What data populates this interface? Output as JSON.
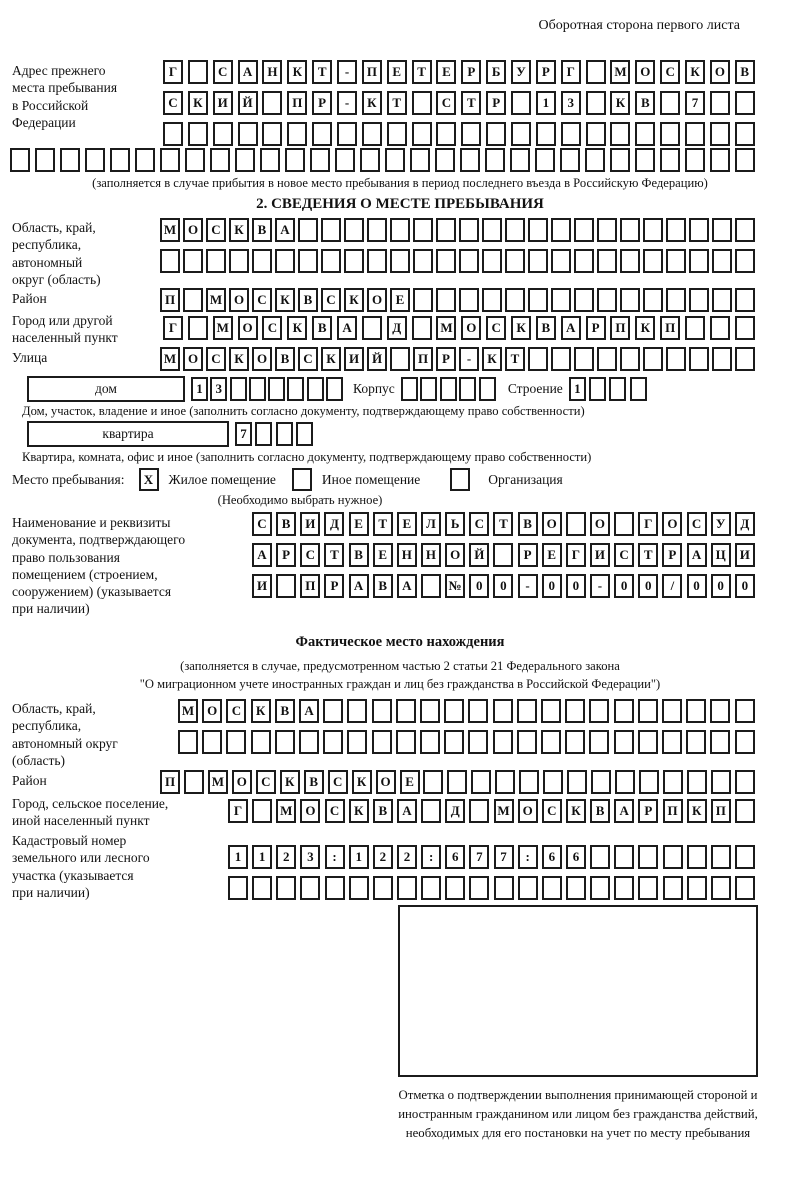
{
  "page": {
    "header_note": "Оборотная сторона первого листа"
  },
  "prev_address": {
    "label": "Адрес прежнего\nместа пребывания\nв Российской\nФедерации",
    "row1": {
      "count": 24,
      "cells": "Г САНКТ-ПЕТЕРБУРГ МОСКОВ"
    },
    "row2": {
      "count": 24,
      "cells": "СКИЙ ПР-КТ СТР 13 КВ 7"
    },
    "row3": {
      "count": 24,
      "cells": ""
    },
    "row4": {
      "count": 30,
      "cells": ""
    },
    "note": "(заполняется в случае прибытия в новое место пребывания в период последнего въезда в Российскую Федерацию)"
  },
  "section2": {
    "title": "2. СВЕДЕНИЯ О МЕСТЕ ПРЕБЫВАНИЯ",
    "oblast": {
      "label": "Область, край,\nреспублика,\nавтономный\nокруг (область)",
      "row1": {
        "count": 26,
        "cells": "МОСКВА"
      },
      "row2": {
        "count": 26,
        "cells": ""
      }
    },
    "rayon": {
      "label": "Район",
      "row": {
        "count": 26,
        "cells": "П МОСКВСКОЕ"
      }
    },
    "gorod": {
      "label": "Город или другой\nнаселенный пункт",
      "row": {
        "count": 24,
        "cells": "Г МОСКВА Д МОСКВАРПКП"
      }
    },
    "ulitsa": {
      "label": "Улица",
      "row": {
        "count": 26,
        "cells": "МОСКОВСКИЙ ПР-КТ"
      }
    },
    "dom": {
      "label": "дом",
      "digits": {
        "count": 8,
        "cells": "13"
      },
      "korpus_label": "Корпус",
      "korpus": {
        "count": 5,
        "cells": ""
      },
      "stroenie_label": "Строение",
      "stroenie": {
        "count": 4,
        "cells": "1"
      },
      "note": "Дом, участок, владение и иное (заполнить согласно документу, подтверждающему право собственности)"
    },
    "kvartira": {
      "label": "квартира",
      "digits": {
        "count": 4,
        "cells": "7"
      },
      "note": "Квартира, комната, офис и иное (заполнить согласно документу, подтверждающему право собственности)"
    },
    "mesto": {
      "label": "Место пребывания:",
      "opt1": {
        "mark": "X",
        "label": "Жилое помещение"
      },
      "opt2": {
        "mark": "",
        "label": "Иное помещение"
      },
      "opt3": {
        "mark": "",
        "label": "Организация"
      },
      "note": "(Необходимо выбрать нужное)"
    },
    "doc": {
      "label": "Наименование и реквизиты\nдокумента, подтверждающего\nправо пользования\nпомещением (строением,\nсооружением) (указывается\nпри наличии)",
      "row1": {
        "count": 21,
        "cells": "СВИДЕТЕЛЬСТВО О ГОСУД"
      },
      "row2": {
        "count": 21,
        "cells": "АРСТВЕННОЙ РЕГИСТРАЦИ"
      },
      "row3": {
        "count": 21,
        "cells": "И ПРАВА №00-00-00/000"
      }
    }
  },
  "fact": {
    "title": "Фактическое место нахождения",
    "note1": "(заполняется в случае, предусмотренном частью 2 статьи 21 Федерального закона",
    "note2": "\"О миграционном учете иностранных граждан и лиц без гражданства в Российской Федерации\")",
    "oblast": {
      "label": "Область, край,\nреспублика,\nавтономный округ\n(область)",
      "row1": {
        "count": 24,
        "cells": "МОСКВА"
      },
      "row2": {
        "count": 24,
        "cells": ""
      }
    },
    "rayon": {
      "label": "Район",
      "row": {
        "count": 25,
        "cells": "П МОСКВСКОЕ"
      }
    },
    "gorod": {
      "label": "Город, сельское поселение,\nиной населенный пункт",
      "row": {
        "count": 22,
        "cells": "Г МОСКВА Д МОСКВАРПКП"
      }
    },
    "kadastr": {
      "label": "Кадастровый номер\nземельного или лесного\nучастка (указывается\nпри наличии)",
      "row1": {
        "count": 22,
        "cells": "1123:122:677:66"
      },
      "row2": {
        "count": 22,
        "cells": ""
      }
    },
    "stamp_note": "Отметка о подтверждении выполнения принимающей стороной и иностранным гражданином или лицом без гражданства действий, необходимых для его постановки на учет по месту пребывания"
  }
}
